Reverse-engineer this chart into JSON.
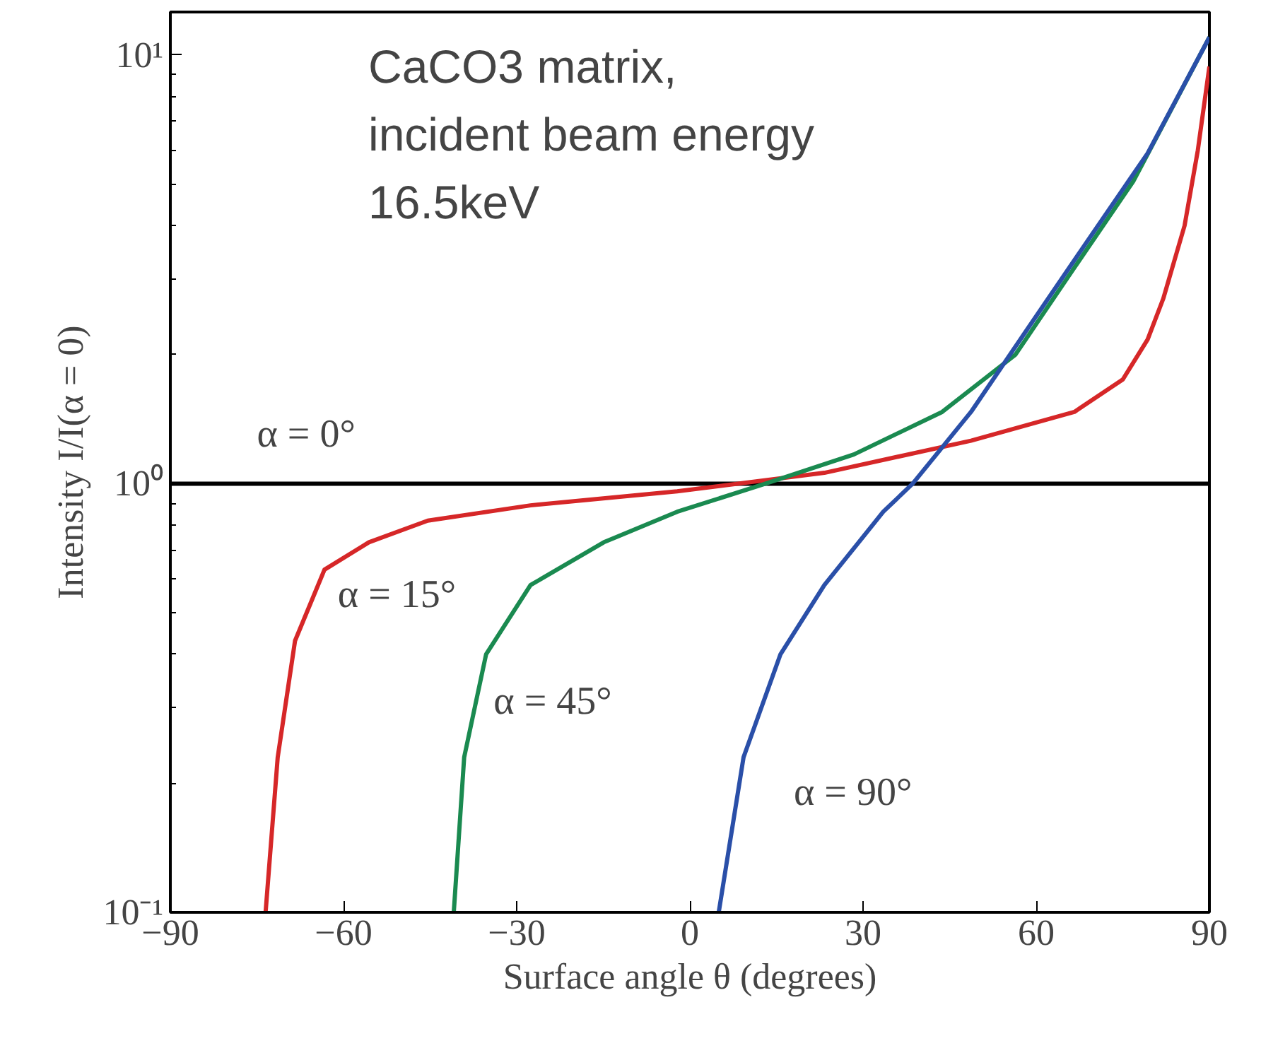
{
  "chart_data": {
    "type": "line",
    "xlabel": "Surface angle θ (degrees)",
    "ylabel": "Intensity I/I(α = 0)",
    "log": "y",
    "grid": false,
    "marker": "none",
    "line_style": "solid",
    "xlim": [
      -90,
      90
    ],
    "ylim": [
      0.1,
      12.6
    ],
    "xticks": [
      {
        "value": -90,
        "label": "−90"
      },
      {
        "value": -60,
        "label": "−60"
      },
      {
        "value": -30,
        "label": "−30"
      },
      0,
      30,
      60,
      90
    ],
    "yticks": [
      {
        "value": 0.1,
        "label": "10⁻¹"
      },
      {
        "value": 0.2,
        "label": null
      },
      {
        "value": 0.3,
        "label": null
      },
      {
        "value": 0.4,
        "label": null
      },
      {
        "value": 0.5,
        "label": null
      },
      {
        "value": 0.6,
        "label": null
      },
      {
        "value": 0.7,
        "label": null
      },
      {
        "value": 0.8,
        "label": null
      },
      {
        "value": 0.9,
        "label": null
      },
      {
        "value": 1,
        "label": "10⁰"
      },
      {
        "value": 2,
        "label": null
      },
      {
        "value": 3,
        "label": null
      },
      {
        "value": 4,
        "label": null
      },
      {
        "value": 5,
        "label": null
      },
      {
        "value": 6,
        "label": null
      },
      {
        "value": 7,
        "label": null
      },
      {
        "value": 8,
        "label": null
      },
      {
        "value": 9,
        "label": null
      },
      {
        "value": 10,
        "label": "10¹"
      }
    ],
    "series": [
      {
        "name": "α = 0°",
        "color": "#000000",
        "x": [
          -90,
          90
        ],
        "values": [
          1,
          1
        ]
      },
      {
        "name": "α = 15°",
        "color": "#d62728",
        "x": [
          -73.5,
          -71.4,
          -68.4,
          -63.3,
          -55.6,
          -45.4,
          -27.6,
          -2.2,
          23.3,
          48.7,
          66.6,
          75,
          79.3,
          82,
          85.7,
          88,
          90
        ],
        "values": [
          0.1,
          0.23,
          0.43,
          0.63,
          0.73,
          0.82,
          0.89,
          0.96,
          1.06,
          1.26,
          1.47,
          1.75,
          2.17,
          2.7,
          4.0,
          6.0,
          9.4
        ]
      },
      {
        "name": "α = 45°",
        "color": "#1a8a50",
        "x": [
          -40.9,
          -39.1,
          -35.3,
          -27.6,
          -14.9,
          -2.2,
          13.1,
          28.4,
          43.7,
          56.4,
          66.6,
          76.8,
          90
        ],
        "values": [
          0.1,
          0.23,
          0.4,
          0.58,
          0.73,
          0.86,
          1.0,
          1.17,
          1.47,
          2.0,
          3.19,
          5.07,
          11
        ]
      },
      {
        "name": "α = 90°",
        "color": "#2a4fa8",
        "x": [
          5.0,
          9.3,
          15.7,
          23.3,
          33.5,
          38.6,
          48.7,
          58.9,
          69.1,
          79.3,
          90
        ],
        "values": [
          0.1,
          0.23,
          0.4,
          0.58,
          0.86,
          1.0,
          1.47,
          2.34,
          3.72,
          5.9,
          11
        ]
      }
    ],
    "annotations": [
      "CaCO3 matrix,\nincident beam energy\n16.5keV"
    ]
  }
}
